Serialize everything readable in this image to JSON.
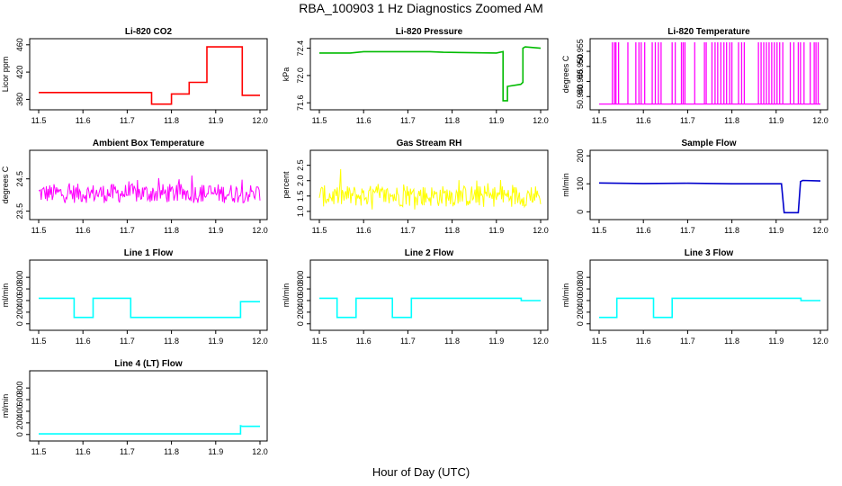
{
  "title": "RBA_100903  1 Hz Diagnostics Zoomed AM",
  "xlabel": "Hour of Day (UTC)",
  "chart_data": [
    {
      "type": "line",
      "title": "Li-820 CO2",
      "ylabel": "Licor ppm",
      "color": "#ff0000",
      "xlim": [
        11.5,
        12.0
      ],
      "ylim": [
        370,
        465
      ],
      "yticks": [
        "380",
        "420",
        "460"
      ],
      "series": [
        {
          "x": [
            11.5,
            11.755,
            11.755,
            11.8,
            11.8,
            11.84,
            11.84,
            11.88,
            11.88,
            11.96,
            11.96,
            12.0
          ],
          "y": [
            390,
            390,
            373,
            373,
            388,
            388,
            405,
            405,
            457,
            457,
            386,
            386
          ]
        }
      ]
    },
    {
      "type": "line",
      "title": "Li-820 Pressure",
      "ylabel": "kPa",
      "color": "#00bb00",
      "xlim": [
        11.5,
        12.0
      ],
      "ylim": [
        71.55,
        72.5
      ],
      "yticks": [
        "71.6",
        "72.0",
        "72.4"
      ],
      "series": [
        {
          "x": [
            11.5,
            11.57,
            11.6,
            11.75,
            11.78,
            11.9,
            11.915,
            11.915,
            11.925,
            11.925,
            11.955,
            11.96,
            11.96,
            11.965,
            12.0
          ],
          "y": [
            72.33,
            72.33,
            72.35,
            72.35,
            72.34,
            72.33,
            72.35,
            71.63,
            71.63,
            71.84,
            71.87,
            71.9,
            72.4,
            72.42,
            72.4
          ]
        }
      ]
    },
    {
      "type": "line",
      "title": "Li-820 Temperature",
      "ylabel": "degrees C",
      "color": "#ff00ff",
      "xlim": [
        11.5,
        12.0
      ],
      "ylim": [
        50.9368,
        50.9583
      ],
      "yticks": [
        "50.940",
        "50.945",
        "50.950",
        "50.955"
      ],
      "baseline": 50.9375,
      "spike_top": 50.958,
      "spikes": [
        11.53,
        11.535,
        11.538,
        11.544,
        11.565,
        11.583,
        11.59,
        11.595,
        11.603,
        11.62,
        11.627,
        11.634,
        11.64,
        11.665,
        11.672,
        11.686,
        11.69,
        11.694,
        11.716,
        11.738,
        11.742,
        11.755,
        11.762,
        11.768,
        11.775,
        11.782,
        11.788,
        11.795,
        11.8,
        11.815,
        11.822,
        11.828,
        11.86,
        11.866,
        11.872,
        11.878,
        11.884,
        11.89,
        11.896,
        11.902,
        11.908,
        11.915,
        11.932,
        11.94,
        11.95,
        11.955,
        11.963,
        11.977,
        11.986,
        11.99,
        11.995
      ]
    },
    {
      "type": "line",
      "title": "Ambient Box Temperature",
      "ylabel": "degrees C",
      "color": "#ff00ff",
      "xlim": [
        11.5,
        12.0
      ],
      "ylim": [
        23.35,
        25.3
      ],
      "yticks": [
        "23.5",
        "24.5"
      ],
      "noise": {
        "center": 24.05,
        "amplitude": 0.3,
        "min": 23.4,
        "max": 25.2
      }
    },
    {
      "type": "line",
      "title": "Gas Stream RH",
      "ylabel": "percent",
      "color": "#ffff00",
      "xlim": [
        11.5,
        12.0
      ],
      "ylim": [
        0.85,
        2.9
      ],
      "yticks": [
        "1.0",
        "1.5",
        "2.0",
        "2.5"
      ],
      "noise": {
        "center": 1.5,
        "amplitude": 0.35,
        "min": 0.88,
        "max": 2.8
      }
    },
    {
      "type": "line",
      "title": "Sample Flow",
      "ylabel": "ml/min",
      "color": "#0000cc",
      "xlim": [
        11.5,
        12.0
      ],
      "ylim": [
        -15,
        210
      ],
      "yticks": [
        "0",
        "100",
        "200"
      ],
      "series": [
        {
          "x": [
            11.5,
            11.6,
            11.7,
            11.8,
            11.912,
            11.918,
            11.95,
            11.955,
            11.96,
            12.0
          ],
          "y": [
            103,
            101,
            102,
            100,
            100,
            -3,
            -3,
            108,
            112,
            110
          ]
        }
      ]
    },
    {
      "type": "line",
      "title": "Line 1 Flow",
      "ylabel": "ml/min",
      "color": "#00ffff",
      "xlim": [
        11.5,
        12.0
      ],
      "ylim": [
        -50,
        1050
      ],
      "yticks": [
        "0",
        "200",
        "400",
        "600",
        "800"
      ],
      "series": [
        {
          "x": [
            11.5,
            11.58,
            11.58,
            11.623,
            11.623,
            11.708,
            11.708,
            11.956,
            11.956,
            12.0
          ],
          "y": [
            440,
            440,
            110,
            110,
            440,
            440,
            110,
            110,
            380,
            380
          ]
        }
      ]
    },
    {
      "type": "line",
      "title": "Line 2 Flow",
      "ylabel": "ml/min",
      "color": "#00ffff",
      "xlim": [
        11.5,
        12.0
      ],
      "ylim": [
        -50,
        1050
      ],
      "yticks": [
        "0",
        "200",
        "400",
        "600",
        "800"
      ],
      "series": [
        {
          "x": [
            11.5,
            11.54,
            11.54,
            11.583,
            11.583,
            11.665,
            11.665,
            11.708,
            11.708,
            11.956,
            11.956,
            12.0
          ],
          "y": [
            440,
            440,
            110,
            110,
            440,
            440,
            110,
            110,
            440,
            440,
            400,
            400
          ]
        }
      ]
    },
    {
      "type": "line",
      "title": "Line 3 Flow",
      "ylabel": "ml/min",
      "color": "#00ffff",
      "xlim": [
        11.5,
        12.0
      ],
      "ylim": [
        -50,
        1050
      ],
      "yticks": [
        "0",
        "200",
        "400",
        "600",
        "800"
      ],
      "series": [
        {
          "x": [
            11.5,
            11.54,
            11.54,
            11.623,
            11.623,
            11.665,
            11.665,
            11.956,
            11.956,
            12.0
          ],
          "y": [
            110,
            110,
            440,
            440,
            110,
            110,
            440,
            440,
            400,
            400
          ]
        }
      ]
    },
    {
      "type": "line",
      "title": "Line 4 (LT) Flow",
      "ylabel": "ml/min",
      "color": "#00ffff",
      "xlim": [
        11.5,
        12.0
      ],
      "ylim": [
        -50,
        1050
      ],
      "yticks": [
        "0",
        "200",
        "400",
        "600",
        "800"
      ],
      "series": [
        {
          "x": [
            11.5,
            11.956,
            11.956,
            11.96,
            12.0
          ],
          "y": [
            10,
            10,
            150,
            140,
            140
          ]
        }
      ]
    }
  ],
  "xticks": [
    "11.5",
    "11.6",
    "11.7",
    "11.8",
    "11.9",
    "12.0"
  ]
}
